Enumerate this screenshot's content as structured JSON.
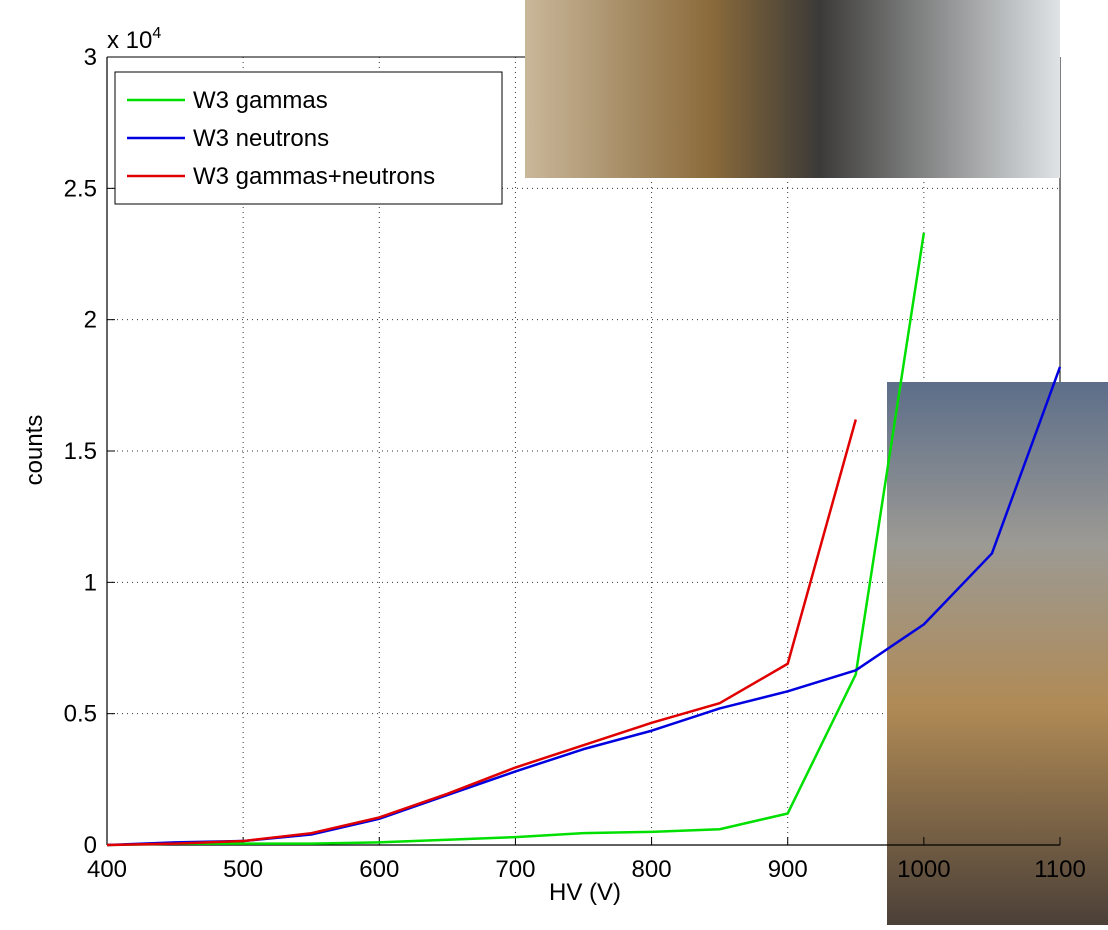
{
  "chart_data": {
    "type": "line",
    "x_label": "HV (V)",
    "y_label": "counts",
    "y_multiplier": "x 10",
    "y_multiplier_exponent": "4",
    "x": [
      400,
      450,
      500,
      550,
      600,
      650,
      700,
      750,
      800,
      850,
      900,
      950,
      1000,
      1050,
      1100
    ],
    "series": [
      {
        "name": "W3 gammas",
        "color": "#00e000",
        "values": [
          0,
          0.005,
          0.005,
          0.005,
          0.01,
          0.02,
          0.03,
          0.045,
          0.05,
          0.06,
          0.12,
          0.65,
          2.33,
          null,
          null
        ]
      },
      {
        "name": "W3 neutrons",
        "color": "#0000e0",
        "values": [
          0,
          0.01,
          0.015,
          0.04,
          0.1,
          0.19,
          0.28,
          0.365,
          0.435,
          0.52,
          0.585,
          0.665,
          0.84,
          1.11,
          1.82
        ]
      },
      {
        "name": "W3 gammas+neutrons",
        "color": "#e00000",
        "values": [
          0,
          0.005,
          0.015,
          0.045,
          0.105,
          0.195,
          0.295,
          0.38,
          0.465,
          0.54,
          0.69,
          1.62,
          null,
          null,
          null
        ]
      }
    ],
    "xlim": [
      400,
      1100
    ],
    "xticks": [
      400,
      500,
      600,
      700,
      800,
      900,
      1000,
      1100
    ],
    "ylim": [
      0,
      3
    ],
    "yticks": [
      0,
      0.5,
      1,
      1.5,
      2,
      2.5,
      3
    ],
    "grid": true,
    "legend": "top-left"
  }
}
